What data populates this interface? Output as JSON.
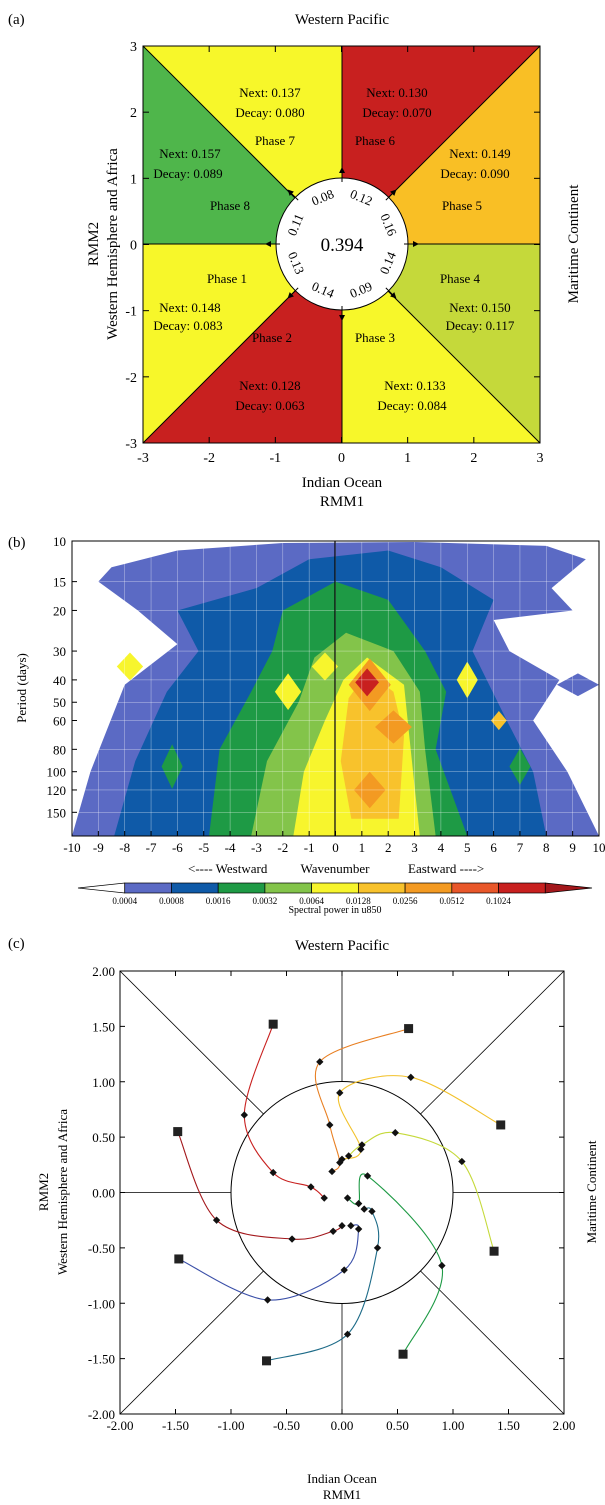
{
  "panel_a": {
    "panel_label": "(a)",
    "top_label": "Western Pacific",
    "right_label": "Maritime Continent",
    "left_label_1": "RMM2",
    "left_label_2": "Western Hemisphere and Africa",
    "bottom_label_1": "Indian Ocean",
    "bottom_label_2": "RMM1",
    "center_value": "0.394",
    "colors": {
      "red": "#c8201f",
      "orange": "#f9bf25",
      "yellow": "#f7f72a",
      "green": "#4fb64b",
      "lime": "#c5d93a"
    }
  },
  "panel_b": {
    "panel_label": "(b)",
    "ylabel": "Period (days)",
    "xlabel_left": "<---- Westward",
    "xlabel_mid": "Wavenumber",
    "xlabel_right": "Eastward ---->",
    "colorbar_title": "Spectral power in u850",
    "colorbar_ticks": [
      "0.0004",
      "0.0008",
      "0.0016",
      "0.0032",
      "0.0064",
      "0.0128",
      "0.0256",
      "0.0512",
      "0.1024"
    ],
    "colorbar_colors": [
      "#ffffff",
      "#5b6ac4",
      "#0f5aa8",
      "#1e9a45",
      "#83c44a",
      "#f7f52d",
      "#f8c22c",
      "#f39a22",
      "#e8572a",
      "#c8201f",
      "#a3171b"
    ]
  },
  "panel_c": {
    "panel_label": "(c)",
    "top_label": "Western Pacific",
    "right_label": "Maritime Continent",
    "left_label_1": "RMM2",
    "left_label_2": "Western Hemisphere and Africa",
    "bottom_label_1": "Indian Ocean",
    "bottom_label_2": "RMM1"
  },
  "chart_data": [
    {
      "type": "heatmap",
      "panel": "a",
      "xlabel": "RMM1",
      "ylabel": "RMM2",
      "xlim": [
        -3,
        3
      ],
      "ylim": [
        -3,
        3
      ],
      "x_ticks": [
        "-3",
        "-2",
        "-1",
        "0",
        "1",
        "2",
        "3"
      ],
      "y_ticks": [
        "-3",
        "-2",
        "-1",
        "0",
        "1",
        "2",
        "3"
      ],
      "phases": [
        {
          "name": "Phase 1",
          "next": "Next: 0.148",
          "decay": "Decay: 0.083",
          "color": "yellow"
        },
        {
          "name": "Phase 2",
          "next": "Next: 0.128",
          "decay": "Decay: 0.063",
          "color": "red"
        },
        {
          "name": "Phase 3",
          "next": "Next: 0.133",
          "decay": "Decay: 0.084",
          "color": "yellow"
        },
        {
          "name": "Phase 4",
          "next": "Next: 0.150",
          "decay": "Decay: 0.117",
          "color": "lime"
        },
        {
          "name": "Phase 5",
          "next": "Next: 0.149",
          "decay": "Decay: 0.090",
          "color": "orange"
        },
        {
          "name": "Phase 6",
          "next": "Next: 0.130",
          "decay": "Decay: 0.070",
          "color": "red"
        },
        {
          "name": "Phase 7",
          "next": "Next: 0.137",
          "decay": "Decay: 0.080",
          "color": "yellow"
        },
        {
          "name": "Phase 8",
          "next": "Next: 0.157",
          "decay": "Decay: 0.089",
          "color": "green"
        }
      ],
      "circle_values": [
        "0.13",
        "0.14",
        "0.09",
        "0.14",
        "0.16",
        "0.12",
        "0.08",
        "0.11"
      ]
    },
    {
      "type": "heatmap",
      "panel": "b",
      "xlabel": "Wavenumber",
      "ylabel": "Period (days)",
      "xlim": [
        -10,
        10
      ],
      "x_ticks": [
        "-10",
        "-9",
        "-8",
        "-7",
        "-6",
        "-5",
        "-4",
        "-3",
        "-2",
        "-1",
        "0",
        "1",
        "2",
        "3",
        "4",
        "5",
        "6",
        "7",
        "8",
        "9",
        "10"
      ],
      "y_ticks": [
        {
          "label": "10",
          "v": 10
        },
        {
          "label": "15",
          "v": 15
        },
        {
          "label": "20",
          "v": 20
        },
        {
          "label": "30",
          "v": 30
        },
        {
          "label": "40",
          "v": 40
        },
        {
          "label": "50",
          "v": 50
        },
        {
          "label": "60",
          "v": 60
        },
        {
          "label": "80",
          "v": 80
        },
        {
          "label": "100",
          "v": 100
        },
        {
          "label": "120",
          "v": 120
        },
        {
          "label": "150",
          "v": 150
        }
      ]
    },
    {
      "type": "line",
      "panel": "c",
      "xlabel": "RMM1",
      "ylabel": "RMM2",
      "xlim": [
        -2,
        2
      ],
      "ylim": [
        -2,
        2
      ],
      "x_ticks": [
        "-2.00",
        "-1.50",
        "-1.00",
        "-0.50",
        "0.00",
        "0.50",
        "1.00",
        "1.50",
        "2.00"
      ],
      "y_ticks": [
        "-2.00",
        "-1.50",
        "-1.00",
        "-0.50",
        "0.00",
        "0.50",
        "1.00",
        "1.50",
        "2.00"
      ],
      "series": [
        {
          "color": "#c8201f",
          "points": [
            [
              -0.62,
              1.52
            ],
            [
              -0.88,
              0.7
            ],
            [
              -0.62,
              0.18
            ],
            [
              -0.28,
              0.05
            ],
            [
              -0.16,
              -0.05
            ]
          ]
        },
        {
          "color": "#e87f22",
          "points": [
            [
              0.6,
              1.48
            ],
            [
              -0.2,
              1.18
            ],
            [
              -0.11,
              0.61
            ],
            [
              -0.02,
              0.27
            ],
            [
              -0.09,
              0.19
            ]
          ]
        },
        {
          "color": "#f2c12a",
          "points": [
            [
              1.43,
              0.61
            ],
            [
              0.62,
              1.04
            ],
            [
              -0.02,
              0.9
            ],
            [
              0.17,
              0.39
            ],
            [
              0.0,
              0.3
            ]
          ]
        },
        {
          "color": "#c5d93a",
          "points": [
            [
              1.37,
              -0.53
            ],
            [
              1.08,
              0.28
            ],
            [
              0.48,
              0.54
            ],
            [
              0.18,
              0.43
            ],
            [
              0.06,
              0.33
            ]
          ]
        },
        {
          "color": "#1e9a45",
          "points": [
            [
              0.55,
              -1.46
            ],
            [
              0.9,
              -0.66
            ],
            [
              0.23,
              0.15
            ],
            [
              0.15,
              -0.1
            ],
            [
              0.05,
              -0.05
            ]
          ]
        },
        {
          "color": "#1d6b88",
          "points": [
            [
              -0.68,
              -1.52
            ],
            [
              0.05,
              -1.28
            ],
            [
              0.32,
              -0.5
            ],
            [
              0.27,
              -0.17
            ],
            [
              0.2,
              -0.15
            ]
          ]
        },
        {
          "color": "#3a4fa8",
          "points": [
            [
              -1.47,
              -0.6
            ],
            [
              -0.67,
              -0.97
            ],
            [
              0.02,
              -0.7
            ],
            [
              0.15,
              -0.33
            ],
            [
              0.08,
              -0.3
            ]
          ]
        },
        {
          "color": "#a3171b",
          "points": [
            [
              -1.48,
              0.55
            ],
            [
              -1.13,
              -0.25
            ],
            [
              -0.45,
              -0.42
            ],
            [
              -0.08,
              -0.35
            ],
            [
              0.0,
              -0.3
            ]
          ]
        }
      ]
    }
  ]
}
